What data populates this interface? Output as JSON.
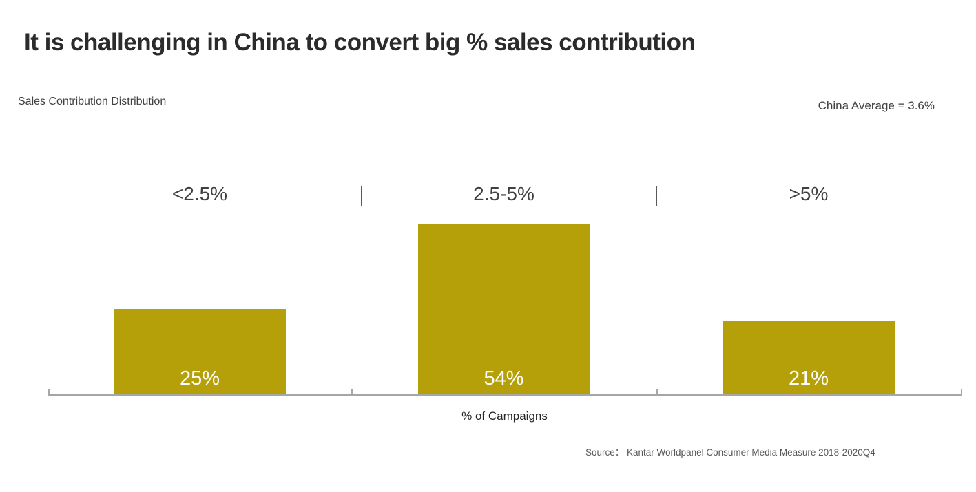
{
  "slide": {
    "title": "It is challenging in China to convert big % sales contribution",
    "subtitle": "Sales Contribution Distribution",
    "annotation": "China Average = 3.6%",
    "source": "Source：  Kantar Worldpanel Consumer Media Measure 2018-2020Q4"
  },
  "chart_data": {
    "type": "bar",
    "title": "Sales Contribution Distribution",
    "categories": [
      "<2.5%",
      "2.5-5%",
      ">5%"
    ],
    "values": [
      25,
      54,
      21
    ],
    "value_labels": [
      "25%",
      "54%",
      "21%"
    ],
    "xlabel": "% of Campaigns",
    "ylabel": "",
    "unit": "% of campaigns",
    "ylim": [
      0,
      60
    ],
    "grid": false,
    "legend": false,
    "annotation": "China Average = 3.6%",
    "colors": {
      "bar": "#B5A009",
      "value_label": "#FFFFFF",
      "category_label": "#404040",
      "axis": "#A6A6A6",
      "divider": "#595959"
    }
  }
}
